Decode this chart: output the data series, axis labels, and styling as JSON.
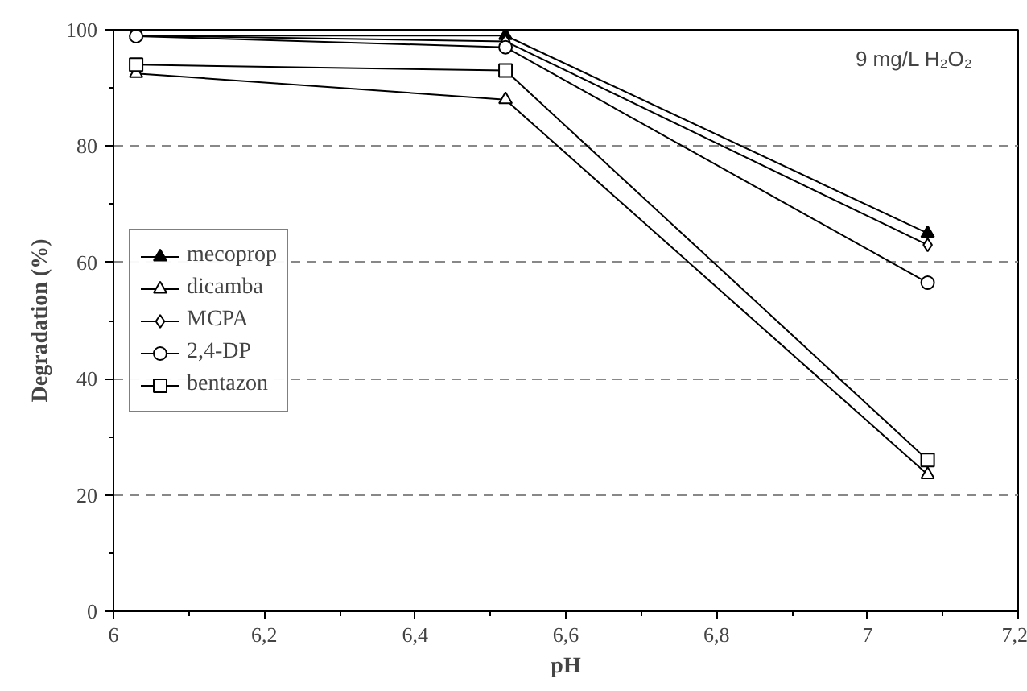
{
  "chart_data": {
    "type": "line",
    "xlabel": "pH",
    "ylabel": "Degradation (%)",
    "annotations": [
      "9 mg/L H₂O₂"
    ],
    "x": [
      6.03,
      6.52,
      7.08
    ],
    "series": [
      {
        "name": "mecoprop",
        "color": "#000000",
        "marker": "triangle_filled",
        "values": [
          99,
          99,
          65
        ]
      },
      {
        "name": "dicamba",
        "color": "#000000",
        "marker": "triangle",
        "values": [
          92.5,
          88,
          23.5
        ]
      },
      {
        "name": "MCPA",
        "color": "#000000",
        "marker": "diamond",
        "values": [
          99,
          98,
          63
        ]
      },
      {
        "name": "2,4-DP",
        "color": "#000000",
        "marker": "circle",
        "values": [
          98.9,
          97,
          56.5
        ]
      },
      {
        "name": "bentazon",
        "color": "#000000",
        "marker": "square",
        "values": [
          94,
          93,
          26
        ]
      }
    ],
    "xlim": [
      6,
      7.2
    ],
    "ylim": [
      0,
      100
    ],
    "xticks": [
      6,
      {
        "value": 6.2,
        "label": "6,2"
      },
      {
        "value": 6.4,
        "label": "6,4"
      },
      {
        "value": 6.6,
        "label": "6,6"
      },
      {
        "value": 6.8,
        "label": "6,8"
      },
      7,
      {
        "value": 7.2,
        "label": "7,2"
      }
    ],
    "yticks": [
      0,
      20,
      40,
      60,
      80,
      100
    ],
    "grid": "y",
    "legend": "left",
    "line_style": "solid"
  }
}
